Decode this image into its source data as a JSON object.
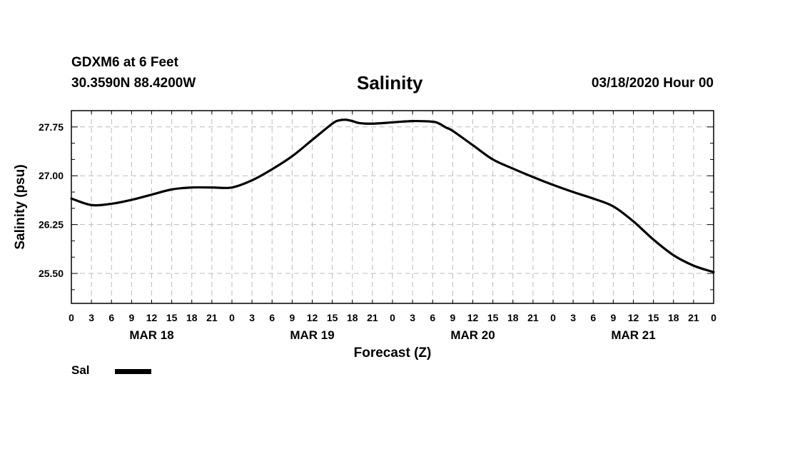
{
  "header": {
    "station": "GDXM6 at 6 Feet",
    "coords": "30.3590N 88.4200W",
    "title": "Salinity",
    "run_time": "03/18/2020 Hour 00"
  },
  "legend": {
    "label": "Sal",
    "color": "#000000"
  },
  "chart_data": {
    "type": "line",
    "title": "Salinity",
    "xlabel": "Forecast (Z)",
    "ylabel": "Salinity (psu)",
    "xlim": [
      0,
      96
    ],
    "ylim": [
      25.04,
      28.0
    ],
    "grid": true,
    "yticks": [
      25.5,
      26.25,
      27.0,
      27.75
    ],
    "ytick_labels": [
      "25.50",
      "26.25",
      "27.00",
      "27.75"
    ],
    "xticks": [
      0,
      3,
      6,
      9,
      12,
      15,
      18,
      21,
      24,
      27,
      30,
      33,
      36,
      39,
      42,
      45,
      48,
      51,
      54,
      57,
      60,
      63,
      66,
      69,
      72,
      75,
      78,
      81,
      84,
      87,
      90,
      93,
      96
    ],
    "xtick_labels": [
      "0",
      "3",
      "6",
      "9",
      "12",
      "15",
      "18",
      "21",
      "0",
      "3",
      "6",
      "9",
      "12",
      "15",
      "18",
      "21",
      "0",
      "3",
      "6",
      "9",
      "12",
      "15",
      "18",
      "21",
      "0",
      "3",
      "6",
      "9",
      "12",
      "15",
      "18",
      "21",
      "0"
    ],
    "day_labels": [
      {
        "label": "MAR 18",
        "hour": 12
      },
      {
        "label": "MAR 19",
        "hour": 36
      },
      {
        "label": "MAR 20",
        "hour": 60
      },
      {
        "label": "MAR 21",
        "hour": 84
      }
    ],
    "series": [
      {
        "name": "Sal",
        "x": [
          0,
          3,
          6,
          9,
          12,
          15,
          18,
          21,
          24,
          27,
          30,
          33,
          36,
          39,
          40,
          41,
          42,
          43,
          45,
          48,
          51,
          54,
          55,
          56,
          57,
          60,
          63,
          66,
          69,
          72,
          75,
          78,
          81,
          84,
          87,
          90,
          93,
          96
        ],
        "values": [
          26.65,
          26.55,
          26.57,
          26.63,
          26.71,
          26.79,
          26.82,
          26.82,
          26.82,
          26.93,
          27.1,
          27.3,
          27.55,
          27.8,
          27.85,
          27.86,
          27.84,
          27.81,
          27.8,
          27.82,
          27.84,
          27.83,
          27.8,
          27.74,
          27.69,
          27.47,
          27.25,
          27.11,
          26.98,
          26.86,
          26.75,
          26.65,
          26.53,
          26.3,
          26.02,
          25.78,
          25.62,
          25.52
        ]
      }
    ]
  }
}
